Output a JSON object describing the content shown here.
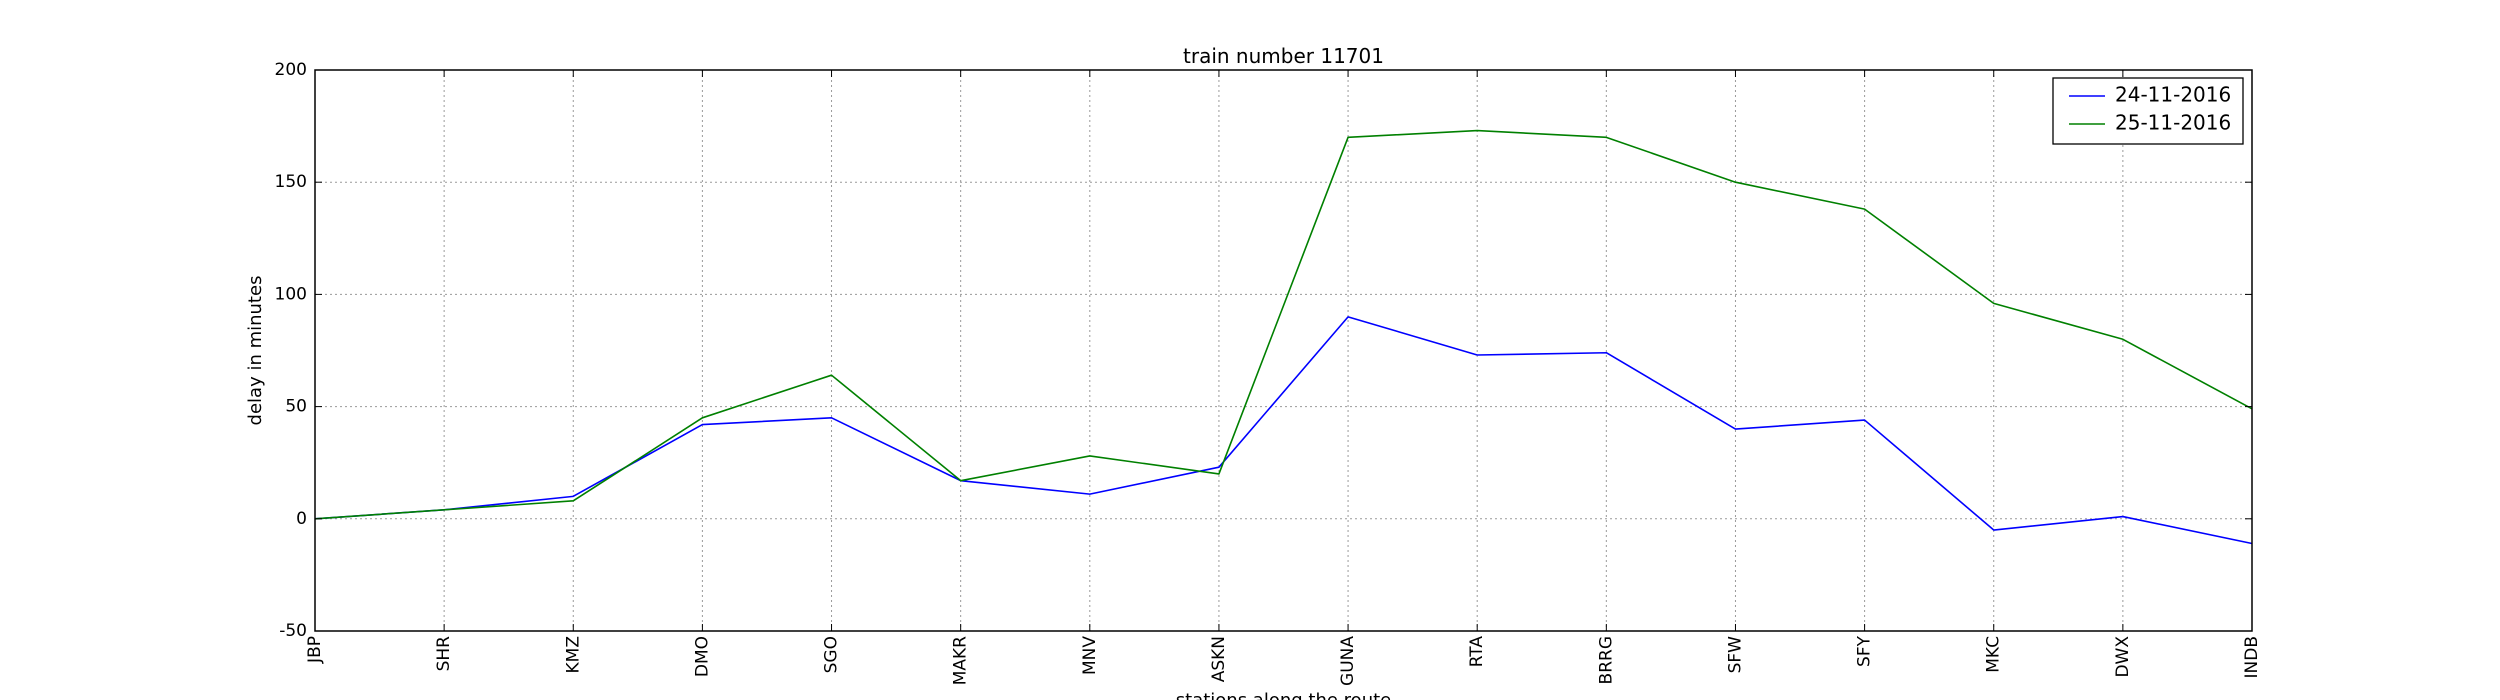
{
  "chart_data": {
    "type": "line",
    "title": "train number 11701",
    "xlabel": "stations along the route",
    "ylabel": "delay in minutes",
    "categories": [
      "JBP",
      "SHR",
      "KMZ",
      "DMO",
      "SGO",
      "MAKR",
      "MNV",
      "ASKN",
      "GUNA",
      "RTA",
      "BRRG",
      "SFW",
      "SFY",
      "MKC",
      "DWX",
      "INDB"
    ],
    "ylim": [
      -50,
      200
    ],
    "yticks": [
      -50,
      0,
      50,
      100,
      150,
      200
    ],
    "grid": true,
    "legend_position": "top-right",
    "series": [
      {
        "name": "24-11-2016",
        "color": "#0000ff",
        "values": [
          0,
          4,
          10,
          42,
          45,
          17,
          11,
          23,
          90,
          73,
          74,
          40,
          44,
          -5,
          1,
          -11
        ]
      },
      {
        "name": "25-11-2016",
        "color": "#008000",
        "values": [
          0,
          4,
          8,
          45,
          64,
          17,
          28,
          20,
          170,
          173,
          170,
          150,
          138,
          96,
          80,
          49
        ]
      }
    ]
  }
}
